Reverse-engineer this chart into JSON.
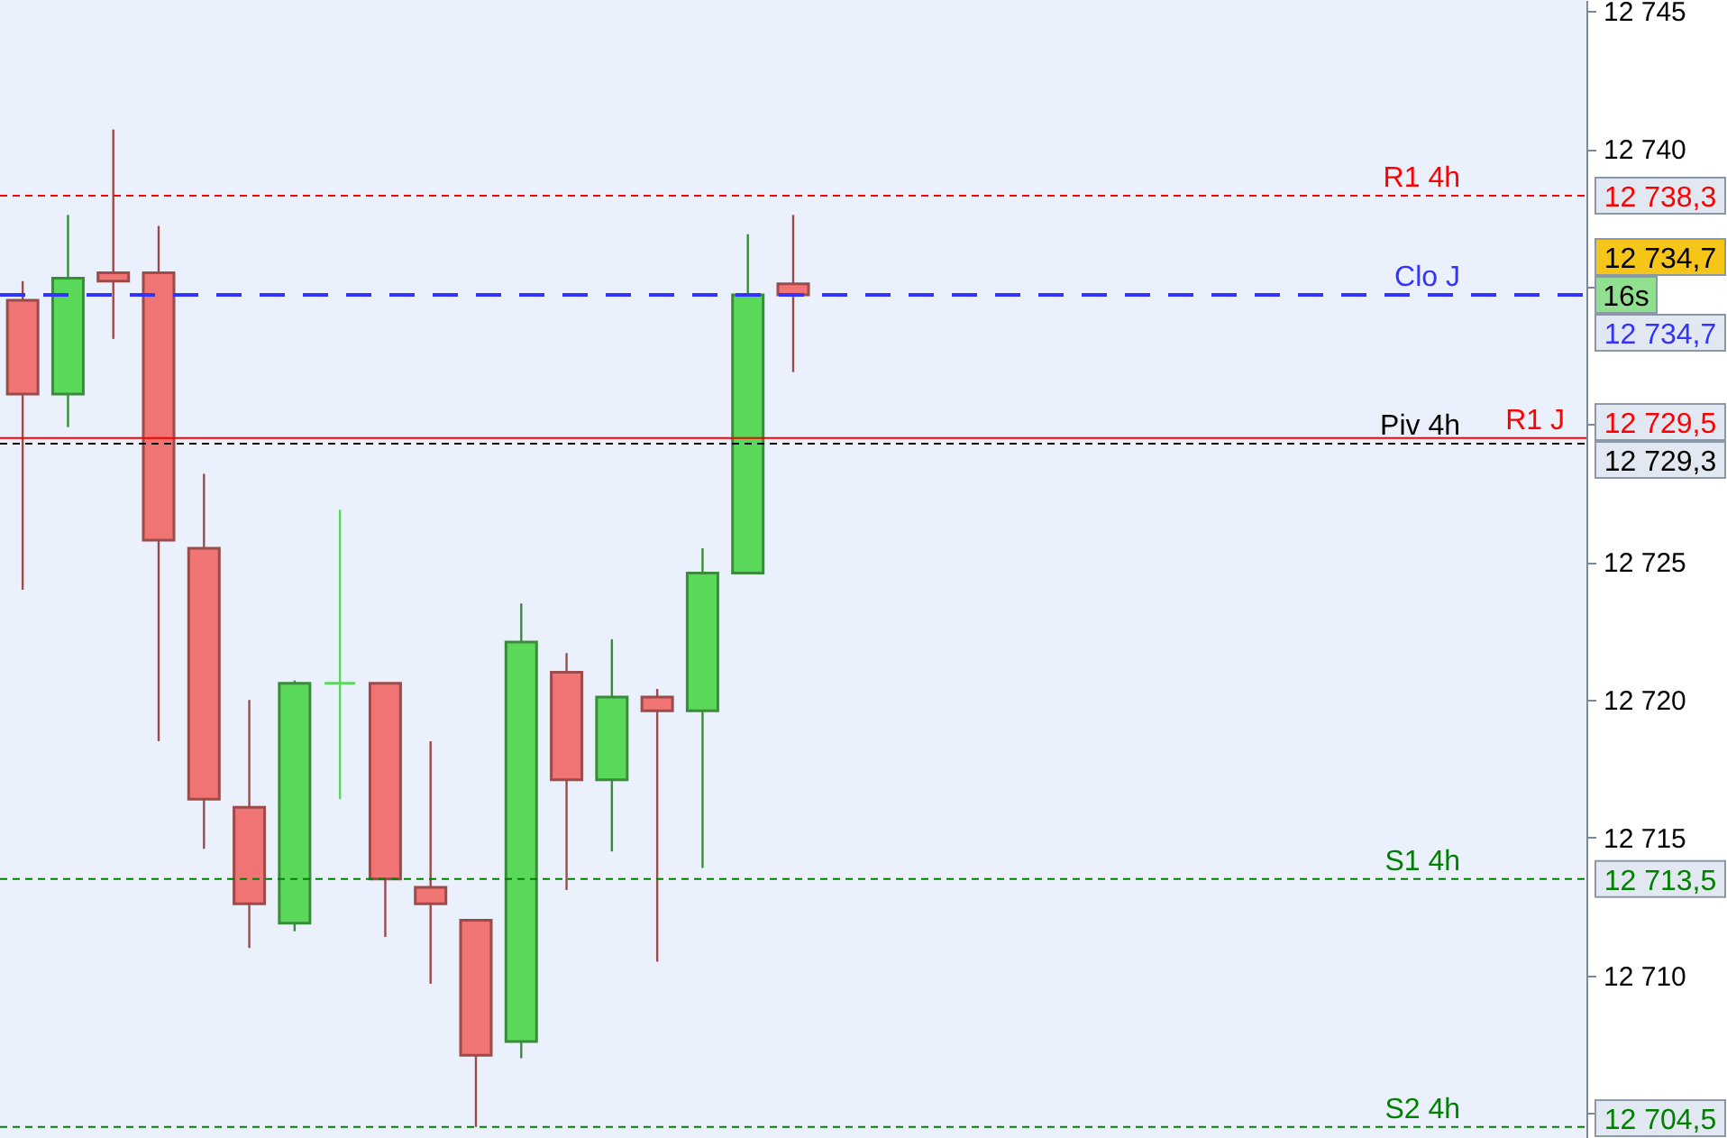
{
  "chart_data": {
    "type": "candlestick",
    "categories": [
      null,
      null,
      null,
      null,
      null,
      null,
      null,
      null,
      null,
      null,
      null,
      null,
      null,
      null,
      null,
      null,
      null,
      null,
      null,
      null,
      null,
      null,
      null,
      null,
      null,
      null,
      null,
      null,
      null,
      null,
      null,
      null,
      null,
      null,
      null
    ],
    "ohlc": [
      [
        12734.5,
        12735.2,
        12724.0,
        12731.1
      ],
      [
        12731.1,
        12737.6,
        12729.9,
        12735.3
      ],
      [
        12735.5,
        12740.7,
        12733.1,
        12735.2
      ],
      [
        12735.5,
        12737.2,
        12718.5,
        12725.8
      ],
      [
        12725.5,
        12728.2,
        12714.6,
        12716.4
      ],
      [
        12716.1,
        12720.0,
        12711.0,
        12712.6
      ],
      [
        12711.9,
        12720.7,
        12711.6,
        12720.6
      ],
      [
        12720.6,
        12726.9,
        12716.4,
        12720.6
      ],
      [
        12720.6,
        12720.6,
        12711.4,
        12713.5
      ],
      [
        12713.2,
        12718.5,
        12709.7,
        12712.6
      ],
      [
        12712.0,
        12712.0,
        12704.5,
        12707.1
      ],
      [
        12707.6,
        12723.5,
        12707.0,
        12722.1
      ],
      [
        12721.0,
        12721.7,
        12713.1,
        12717.1
      ],
      [
        12717.1,
        12722.2,
        12714.5,
        12720.1
      ],
      [
        12720.1,
        12720.4,
        12710.5,
        12719.6
      ],
      [
        12719.6,
        12725.5,
        12713.9,
        12724.6
      ],
      [
        12724.6,
        12736.9,
        12724.6,
        12734.7
      ],
      [
        12735.1,
        12737.6,
        12731.9,
        12734.7
      ],
      null,
      null,
      null,
      null,
      null,
      null,
      null,
      null,
      null,
      null,
      null,
      null,
      null,
      null,
      null,
      null,
      null
    ],
    "colors": [
      "#f07474",
      "#5ad85a",
      "#f07474",
      "#f07474",
      "#f07474",
      "#f07474",
      "#5ad85a",
      "#5ad85a",
      "#f07474",
      "#f07474",
      "#f07474",
      "#5ad85a",
      "#f07474",
      "#5ad85a",
      "#f07474",
      "#5ad85a",
      "#5ad85a",
      "#f07474",
      null,
      null,
      null,
      null,
      null,
      null,
      null,
      null,
      null,
      null,
      null,
      null,
      null,
      null,
      null,
      null,
      null
    ],
    "ylim": [
      12704.1,
      12745.4
    ],
    "yticks": [
      {
        "value": 12705,
        "label": null
      },
      {
        "value": 12710,
        "label": "12 710"
      },
      {
        "value": 12715,
        "label": "12 715"
      },
      {
        "value": 12720,
        "label": "12 720"
      },
      {
        "value": 12725,
        "label": "12 725"
      },
      {
        "value": 12730,
        "label": null
      },
      {
        "value": 12735,
        "label": null
      },
      {
        "value": 12740,
        "label": "12 740"
      },
      {
        "value": 12745,
        "label": "12 745"
      }
    ],
    "ref_lines": [
      {
        "axis": "y",
        "value": 12738.3,
        "label": "R1 4h",
        "color": "#ff0000",
        "line_style": "dotted"
      },
      {
        "axis": "y",
        "value": 12734.7,
        "label": "Clo J",
        "color": "#3333ff",
        "line_style": "dashed"
      },
      {
        "axis": "y",
        "value": 12729.3,
        "label": "Piv 4h",
        "color": "#000000",
        "line_style": "dotted"
      },
      {
        "axis": "y",
        "value": 12729.5,
        "label": "R1 J",
        "color": "#ff0000",
        "line_style": "solid"
      },
      {
        "axis": "y",
        "value": 12713.5,
        "label": "S1 4h",
        "color": "#008000",
        "line_style": "dotted"
      },
      {
        "axis": "y",
        "value": 12704.5,
        "label": "S2 4h",
        "color": "#008000",
        "line_style": "dotted"
      }
    ],
    "annotations": [
      "12 738,3",
      "12 734,7",
      "12 734,7",
      "12 729,5",
      "12 729,3",
      "12 713,5",
      "12 704,5",
      "16s"
    ],
    "grid": false
  }
}
